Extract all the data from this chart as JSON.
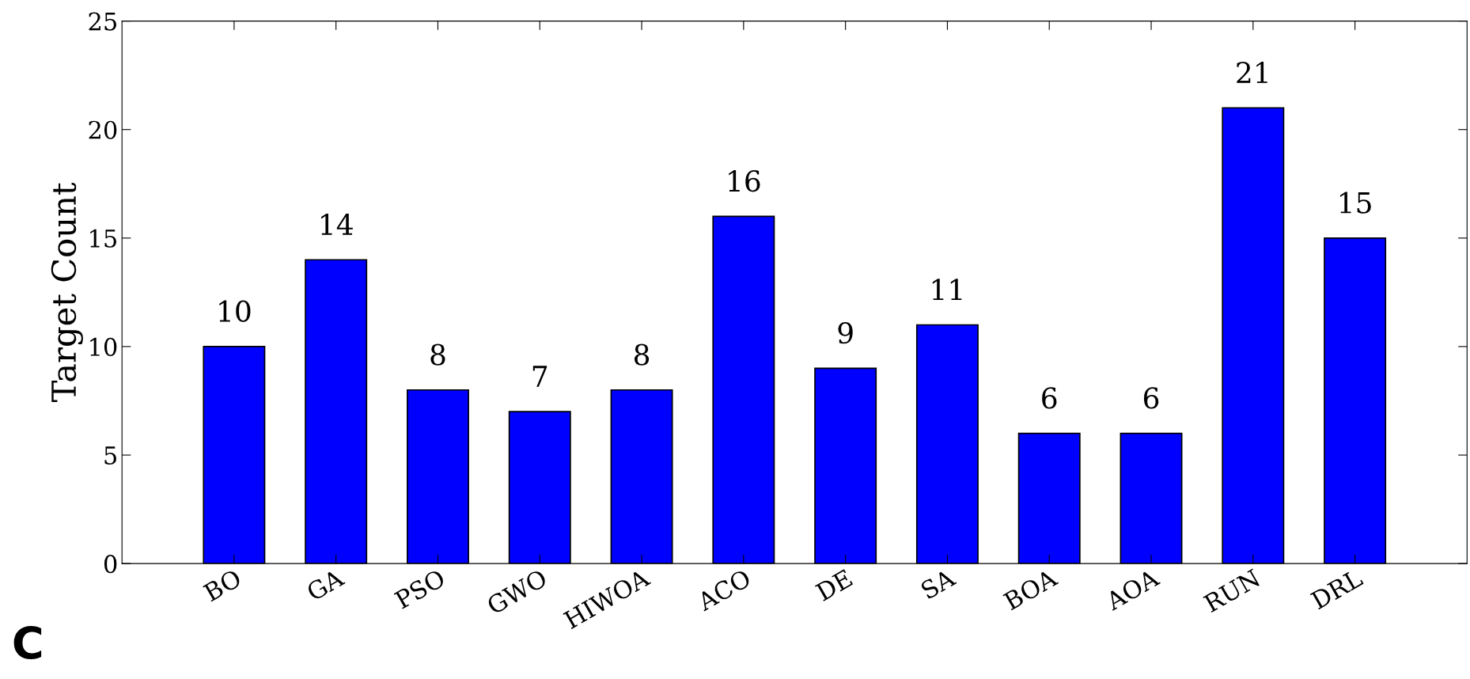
{
  "chart_data": {
    "type": "bar",
    "ylabel": "Target Count",
    "categories": [
      "BO",
      "GA",
      "PSO",
      "GWO",
      "HIWOA",
      "ACO",
      "DE",
      "SA",
      "BOA",
      "AOA",
      "RUN",
      "DRL"
    ],
    "values": [
      10,
      14,
      8,
      7,
      8,
      16,
      9,
      11,
      6,
      6,
      21,
      15
    ],
    "color": "#0000ff",
    "ylim": [
      0,
      25
    ],
    "yticks": [
      0,
      5,
      10,
      15,
      20,
      25
    ],
    "grid": false,
    "data_labels": true,
    "annotations": [
      "C"
    ]
  }
}
